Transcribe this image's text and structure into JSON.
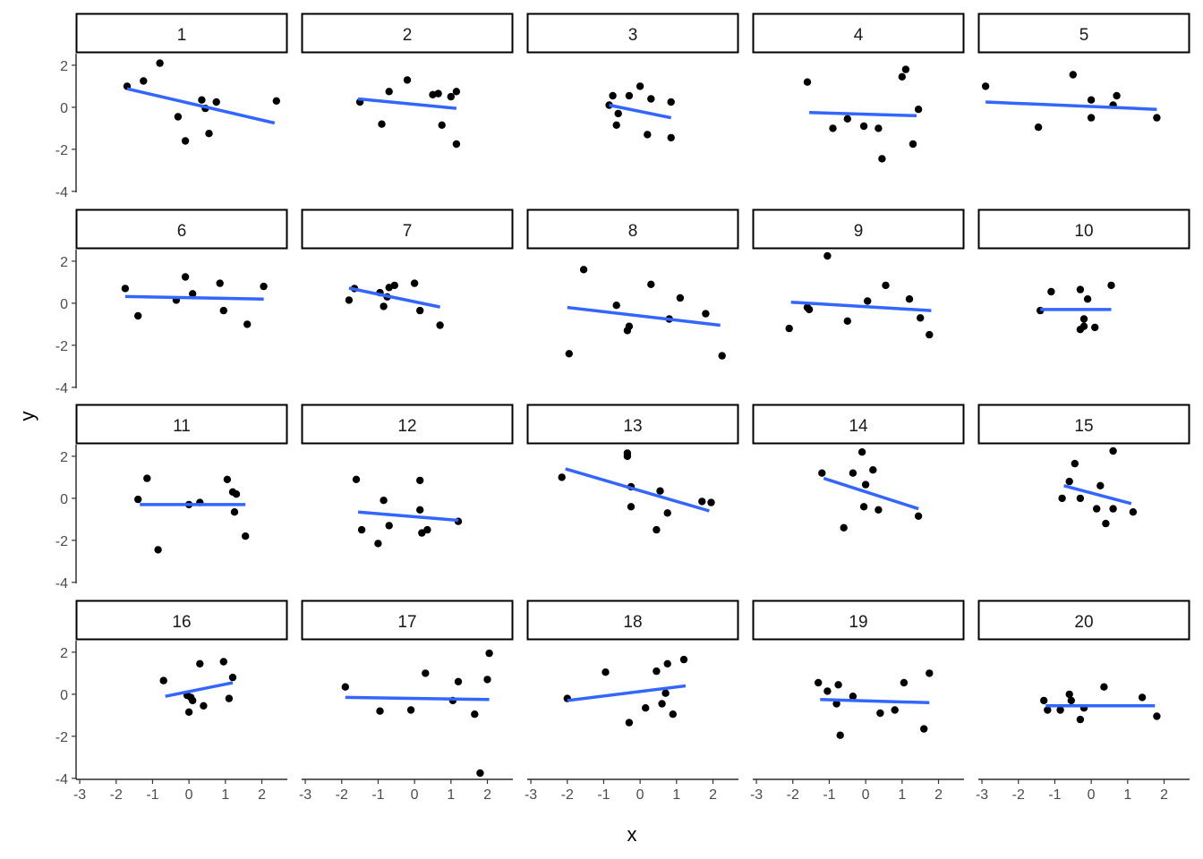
{
  "chart_data": {
    "type": "scatter",
    "layout": "facet_wrap",
    "xlabel": "x",
    "ylabel": "y",
    "xlim": [
      -3.1,
      2.7
    ],
    "ylim": [
      -4.05,
      2.55
    ],
    "x_ticks": [
      -3,
      -2,
      -1,
      0,
      1,
      2
    ],
    "y_ticks": [
      -4,
      -2,
      0,
      2
    ],
    "grid": false,
    "colors": {
      "points": "#000000",
      "fit_line": "#3366FF",
      "strip_border": "#000000",
      "strip_fill": "#ffffff"
    },
    "panels": [
      {
        "label": "1",
        "points": [
          [
            -1.7,
            1.0
          ],
          [
            -1.25,
            1.25
          ],
          [
            -0.8,
            2.1
          ],
          [
            -0.3,
            -0.45
          ],
          [
            -0.1,
            -1.6
          ],
          [
            0.35,
            0.35
          ],
          [
            0.45,
            -0.05
          ],
          [
            0.55,
            -1.25
          ],
          [
            0.75,
            0.25
          ],
          [
            2.4,
            0.3
          ]
        ],
        "fit": [
          [
            -1.7,
            0.88
          ],
          [
            2.35,
            -0.75
          ]
        ]
      },
      {
        "label": "2",
        "points": [
          [
            -1.5,
            0.25
          ],
          [
            -0.9,
            -0.8
          ],
          [
            -0.7,
            0.75
          ],
          [
            -0.2,
            1.3
          ],
          [
            0.5,
            0.6
          ],
          [
            0.65,
            0.65
          ],
          [
            0.75,
            -0.85
          ],
          [
            1.0,
            0.5
          ],
          [
            1.15,
            0.75
          ],
          [
            1.15,
            -1.75
          ]
        ],
        "fit": [
          [
            -1.55,
            0.4
          ],
          [
            1.15,
            -0.05
          ]
        ]
      },
      {
        "label": "3",
        "points": [
          [
            -0.85,
            0.1
          ],
          [
            -0.75,
            0.55
          ],
          [
            -0.6,
            -0.3
          ],
          [
            -0.65,
            -0.85
          ],
          [
            -0.3,
            0.55
          ],
          [
            0.0,
            1.0
          ],
          [
            0.2,
            -1.3
          ],
          [
            0.3,
            0.4
          ],
          [
            0.85,
            0.25
          ],
          [
            0.85,
            -1.45
          ]
        ],
        "fit": [
          [
            -0.85,
            0.1
          ],
          [
            0.85,
            -0.5
          ]
        ]
      },
      {
        "label": "4",
        "points": [
          [
            -1.6,
            1.2
          ],
          [
            -0.9,
            -1.0
          ],
          [
            -0.5,
            -0.55
          ],
          [
            -0.05,
            -0.9
          ],
          [
            0.35,
            -1.0
          ],
          [
            0.45,
            -2.45
          ],
          [
            1.0,
            1.45
          ],
          [
            1.1,
            1.8
          ],
          [
            1.3,
            -1.75
          ],
          [
            1.45,
            -0.1
          ]
        ],
        "fit": [
          [
            -1.55,
            -0.25
          ],
          [
            1.4,
            -0.4
          ]
        ]
      },
      {
        "label": "5",
        "points": [
          [
            -2.9,
            1.0
          ],
          [
            -1.45,
            -0.95
          ],
          [
            -0.5,
            1.55
          ],
          [
            0.0,
            0.35
          ],
          [
            0.0,
            -0.5
          ],
          [
            0.6,
            0.1
          ],
          [
            0.7,
            0.55
          ],
          [
            1.8,
            -0.5
          ]
        ],
        "fit": [
          [
            -2.9,
            0.25
          ],
          [
            1.8,
            -0.1
          ]
        ]
      },
      {
        "label": "6",
        "points": [
          [
            -1.75,
            0.7
          ],
          [
            -1.4,
            -0.6
          ],
          [
            -0.35,
            0.15
          ],
          [
            -0.1,
            1.25
          ],
          [
            0.1,
            0.45
          ],
          [
            0.85,
            0.95
          ],
          [
            0.95,
            -0.35
          ],
          [
            1.6,
            -1.0
          ],
          [
            2.05,
            0.8
          ]
        ],
        "fit": [
          [
            -1.75,
            0.32
          ],
          [
            2.05,
            0.2
          ]
        ]
      },
      {
        "label": "7",
        "points": [
          [
            -1.8,
            0.15
          ],
          [
            -1.65,
            0.7
          ],
          [
            -0.95,
            0.5
          ],
          [
            -0.85,
            -0.15
          ],
          [
            -0.75,
            0.3
          ],
          [
            -0.7,
            0.75
          ],
          [
            -0.55,
            0.85
          ],
          [
            0.0,
            0.95
          ],
          [
            0.15,
            -0.35
          ],
          [
            0.7,
            -1.05
          ]
        ],
        "fit": [
          [
            -1.8,
            0.72
          ],
          [
            0.7,
            -0.18
          ]
        ]
      },
      {
        "label": "8",
        "points": [
          [
            -1.95,
            -2.4
          ],
          [
            -1.55,
            1.6
          ],
          [
            -0.65,
            -0.1
          ],
          [
            -0.35,
            -1.3
          ],
          [
            -0.3,
            -1.1
          ],
          [
            0.3,
            0.9
          ],
          [
            0.8,
            -0.75
          ],
          [
            1.1,
            0.25
          ],
          [
            1.8,
            -0.5
          ],
          [
            2.25,
            -2.5
          ]
        ],
        "fit": [
          [
            -2.0,
            -0.2
          ],
          [
            2.2,
            -1.05
          ]
        ]
      },
      {
        "label": "9",
        "points": [
          [
            -2.1,
            -1.2
          ],
          [
            -1.6,
            -0.2
          ],
          [
            -1.55,
            -0.3
          ],
          [
            -1.05,
            2.25
          ],
          [
            -0.5,
            -0.85
          ],
          [
            0.05,
            0.1
          ],
          [
            0.55,
            0.85
          ],
          [
            1.2,
            0.2
          ],
          [
            1.5,
            -0.7
          ],
          [
            1.75,
            -1.5
          ]
        ],
        "fit": [
          [
            -2.05,
            0.05
          ],
          [
            1.8,
            -0.35
          ]
        ]
      },
      {
        "label": "10",
        "points": [
          [
            -1.4,
            -0.35
          ],
          [
            -1.1,
            0.55
          ],
          [
            -0.3,
            0.65
          ],
          [
            -0.3,
            -1.25
          ],
          [
            -0.2,
            -1.1
          ],
          [
            -0.2,
            -0.75
          ],
          [
            -0.1,
            0.2
          ],
          [
            0.1,
            -1.15
          ],
          [
            0.55,
            0.85
          ]
        ],
        "fit": [
          [
            -1.4,
            -0.3
          ],
          [
            0.55,
            -0.3
          ]
        ]
      },
      {
        "label": "11",
        "points": [
          [
            -1.4,
            -0.05
          ],
          [
            -1.15,
            0.95
          ],
          [
            -0.85,
            -2.45
          ],
          [
            0.0,
            -0.3
          ],
          [
            0.3,
            -0.2
          ],
          [
            1.05,
            0.9
          ],
          [
            1.2,
            0.3
          ],
          [
            1.3,
            0.2
          ],
          [
            1.25,
            -0.65
          ],
          [
            1.55,
            -1.8
          ]
        ],
        "fit": [
          [
            -1.35,
            -0.3
          ],
          [
            1.55,
            -0.3
          ]
        ]
      },
      {
        "label": "12",
        "points": [
          [
            -1.6,
            0.9
          ],
          [
            -1.45,
            -1.5
          ],
          [
            -1.0,
            -2.15
          ],
          [
            -0.85,
            -0.1
          ],
          [
            -0.7,
            -1.3
          ],
          [
            0.15,
            0.85
          ],
          [
            0.15,
            -0.55
          ],
          [
            0.2,
            -1.65
          ],
          [
            0.35,
            -1.5
          ],
          [
            1.2,
            -1.1
          ]
        ],
        "fit": [
          [
            -1.55,
            -0.65
          ],
          [
            1.2,
            -1.05
          ]
        ]
      },
      {
        "label": "13",
        "points": [
          [
            -2.15,
            1.0
          ],
          [
            -0.35,
            2.15
          ],
          [
            -0.35,
            2.0
          ],
          [
            -0.25,
            0.55
          ],
          [
            -0.25,
            -0.4
          ],
          [
            0.45,
            -1.5
          ],
          [
            0.55,
            0.35
          ],
          [
            0.75,
            -0.7
          ],
          [
            1.7,
            -0.15
          ],
          [
            1.95,
            -0.2
          ]
        ],
        "fit": [
          [
            -2.05,
            1.4
          ],
          [
            1.9,
            -0.6
          ]
        ]
      },
      {
        "label": "14",
        "points": [
          [
            -1.2,
            1.2
          ],
          [
            -0.6,
            -1.4
          ],
          [
            -0.35,
            1.2
          ],
          [
            -0.1,
            2.2
          ],
          [
            -0.05,
            -0.4
          ],
          [
            0.0,
            0.65
          ],
          [
            0.2,
            1.35
          ],
          [
            0.35,
            -0.55
          ],
          [
            1.45,
            -0.85
          ]
        ],
        "fit": [
          [
            -1.15,
            0.95
          ],
          [
            1.45,
            -0.5
          ]
        ]
      },
      {
        "label": "15",
        "points": [
          [
            -0.8,
            0.0
          ],
          [
            -0.6,
            0.8
          ],
          [
            -0.45,
            1.65
          ],
          [
            -0.3,
            0.0
          ],
          [
            0.15,
            -0.5
          ],
          [
            0.25,
            0.6
          ],
          [
            0.4,
            -1.2
          ],
          [
            0.6,
            -0.5
          ],
          [
            0.6,
            2.25
          ],
          [
            1.15,
            -0.65
          ]
        ],
        "fit": [
          [
            -0.75,
            0.6
          ],
          [
            1.1,
            -0.25
          ]
        ]
      },
      {
        "label": "16",
        "points": [
          [
            -0.7,
            0.65
          ],
          [
            -0.05,
            -0.05
          ],
          [
            0.0,
            -0.85
          ],
          [
            0.05,
            -0.15
          ],
          [
            0.1,
            -0.3
          ],
          [
            0.3,
            1.45
          ],
          [
            0.4,
            -0.55
          ],
          [
            0.95,
            1.55
          ],
          [
            1.1,
            -0.2
          ],
          [
            1.2,
            0.8
          ]
        ],
        "fit": [
          [
            -0.65,
            -0.1
          ],
          [
            1.2,
            0.55
          ]
        ]
      },
      {
        "label": "17",
        "points": [
          [
            -1.9,
            0.35
          ],
          [
            -0.95,
            -0.8
          ],
          [
            -0.1,
            -0.75
          ],
          [
            0.3,
            1.0
          ],
          [
            1.05,
            -0.3
          ],
          [
            1.2,
            0.6
          ],
          [
            1.65,
            -0.95
          ],
          [
            1.8,
            -3.75
          ],
          [
            2.0,
            0.7
          ],
          [
            2.05,
            1.95
          ]
        ],
        "fit": [
          [
            -1.9,
            -0.15
          ],
          [
            2.05,
            -0.25
          ]
        ]
      },
      {
        "label": "18",
        "points": [
          [
            -2.0,
            -0.2
          ],
          [
            -0.95,
            1.05
          ],
          [
            -0.3,
            -1.35
          ],
          [
            0.15,
            -0.65
          ],
          [
            0.45,
            1.1
          ],
          [
            0.6,
            -0.45
          ],
          [
            0.7,
            0.05
          ],
          [
            0.75,
            1.45
          ],
          [
            0.9,
            -0.95
          ],
          [
            1.2,
            1.65
          ]
        ],
        "fit": [
          [
            -2.0,
            -0.3
          ],
          [
            1.25,
            0.4
          ]
        ]
      },
      {
        "label": "19",
        "points": [
          [
            -1.3,
            0.55
          ],
          [
            -1.05,
            0.15
          ],
          [
            -0.8,
            -0.45
          ],
          [
            -0.75,
            0.45
          ],
          [
            -0.7,
            -1.95
          ],
          [
            -0.35,
            -0.1
          ],
          [
            0.4,
            -0.9
          ],
          [
            0.8,
            -0.75
          ],
          [
            1.05,
            0.55
          ],
          [
            1.6,
            -1.65
          ],
          [
            1.75,
            1.0
          ]
        ],
        "fit": [
          [
            -1.25,
            -0.25
          ],
          [
            1.75,
            -0.4
          ]
        ]
      },
      {
        "label": "20",
        "points": [
          [
            -1.3,
            -0.3
          ],
          [
            -1.2,
            -0.75
          ],
          [
            -0.85,
            -0.75
          ],
          [
            -0.6,
            0.0
          ],
          [
            -0.55,
            -0.3
          ],
          [
            -0.3,
            -1.2
          ],
          [
            -0.2,
            -0.65
          ],
          [
            0.35,
            0.35
          ],
          [
            1.4,
            -0.15
          ],
          [
            1.8,
            -1.05
          ]
        ],
        "fit": [
          [
            -1.25,
            -0.55
          ],
          [
            1.75,
            -0.55
          ]
        ]
      }
    ]
  }
}
